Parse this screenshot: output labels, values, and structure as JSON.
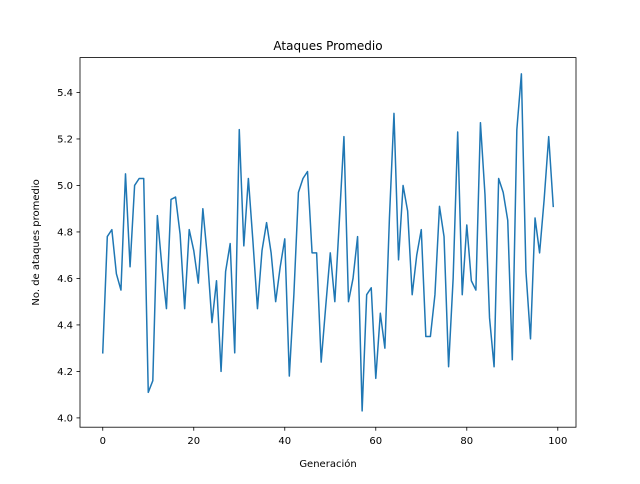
{
  "chart_data": {
    "type": "line",
    "title": "Ataques Promedio",
    "xlabel": "Generación",
    "ylabel": "No. de ataques promedio",
    "xlim": [
      -5,
      104
    ],
    "ylim": [
      3.96,
      5.55
    ],
    "xticks": [
      0,
      20,
      40,
      60,
      80,
      100
    ],
    "yticks": [
      4.0,
      4.2,
      4.4,
      4.6,
      4.8,
      5.0,
      5.2,
      5.4
    ],
    "xtick_labels": [
      "0",
      "20",
      "40",
      "60",
      "80",
      "100"
    ],
    "ytick_labels": [
      "4.0",
      "4.2",
      "4.4",
      "4.6",
      "4.8",
      "5.0",
      "5.2",
      "5.4"
    ],
    "grid": false,
    "series": [
      {
        "color": "#1f77b4",
        "x": [
          0,
          1,
          2,
          3,
          4,
          5,
          6,
          7,
          8,
          9,
          10,
          11,
          12,
          13,
          14,
          15,
          16,
          17,
          18,
          19,
          20,
          21,
          22,
          23,
          24,
          25,
          26,
          27,
          28,
          29,
          30,
          31,
          32,
          33,
          34,
          35,
          36,
          37,
          38,
          39,
          40,
          41,
          42,
          43,
          44,
          45,
          46,
          47,
          48,
          49,
          50,
          51,
          52,
          53,
          54,
          55,
          56,
          57,
          58,
          59,
          60,
          61,
          62,
          63,
          64,
          65,
          66,
          67,
          68,
          69,
          70,
          71,
          72,
          73,
          74,
          75,
          76,
          77,
          78,
          79,
          80,
          81,
          82,
          83,
          84,
          85,
          86,
          87,
          88,
          89,
          90,
          91,
          92,
          93,
          94,
          95,
          96,
          97,
          98,
          99
        ],
        "values": [
          4.28,
          4.78,
          4.81,
          4.62,
          4.55,
          5.05,
          4.65,
          5.0,
          5.03,
          5.03,
          4.11,
          4.16,
          4.87,
          4.65,
          4.47,
          4.94,
          4.95,
          4.79,
          4.47,
          4.81,
          4.72,
          4.58,
          4.9,
          4.69,
          4.41,
          4.59,
          4.2,
          4.63,
          4.75,
          4.28,
          5.24,
          4.74,
          5.03,
          4.76,
          4.47,
          4.72,
          4.84,
          4.71,
          4.5,
          4.65,
          4.77,
          4.18,
          4.53,
          4.97,
          5.03,
          5.06,
          4.71,
          4.71,
          4.24,
          4.48,
          4.71,
          4.5,
          4.85,
          5.21,
          4.5,
          4.6,
          4.78,
          4.03,
          4.53,
          4.56,
          4.17,
          4.45,
          4.3,
          4.86,
          5.31,
          4.68,
          5.0,
          4.89,
          4.53,
          4.7,
          4.81,
          4.35,
          4.35,
          4.53,
          4.91,
          4.78,
          4.22,
          4.6,
          5.23,
          4.53,
          4.83,
          4.59,
          4.55,
          5.27,
          4.96,
          4.43,
          4.22,
          5.03,
          4.97,
          4.85,
          4.25,
          5.24,
          5.48,
          4.63,
          4.34,
          4.86,
          4.71,
          4.94,
          5.21,
          4.91
        ]
      }
    ]
  }
}
